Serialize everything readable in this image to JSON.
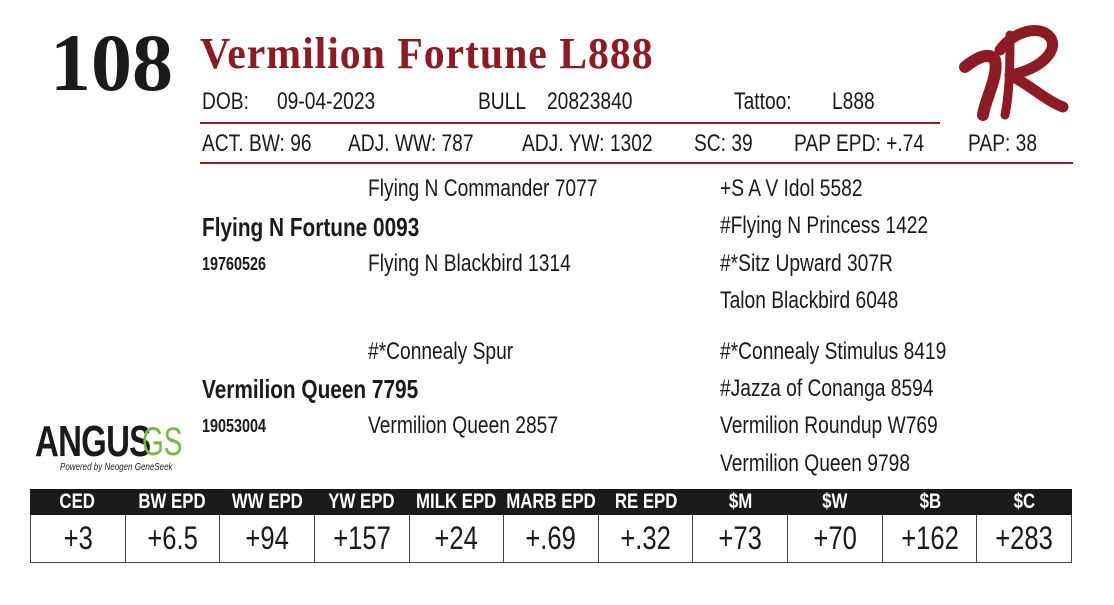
{
  "lot": "108",
  "name": "Vermilion Fortune L888",
  "info": {
    "dob_label": "DOB:",
    "dob": "09-04-2023",
    "sex": "BULL",
    "registration": "20823840",
    "tattoo_label": "Tattoo:",
    "tattoo": "L888"
  },
  "stats": [
    "ACT. BW: 96",
    "ADJ. WW: 787",
    "ADJ. YW: 1302",
    "SC: 39",
    "PAP EPD: +.74",
    "PAP: 38"
  ],
  "pedigree": {
    "sire": {
      "name": "Flying N Fortune 0093",
      "registration": "19760526",
      "sire": {
        "name": "Flying N Commander 7077",
        "sire": "+S A V Idol 5582",
        "dam": "#Flying N Princess 1422"
      },
      "dam": {
        "name": "Flying N Blackbird 1314",
        "sire": "#*Sitz Upward 307R",
        "dam": "Talon Blackbird 6048"
      }
    },
    "dam": {
      "name": "Vermilion Queen 7795",
      "registration": "19053004",
      "sire": {
        "name": "#*Connealy Spur",
        "sire": "#*Connealy Stimulus 8419",
        "dam": "#Jazza of Conanga 8594"
      },
      "dam": {
        "name": "Vermilion Queen 2857",
        "sire": "Vermilion Roundup W769",
        "dam": "Vermilion Queen 9798"
      }
    }
  },
  "logo": {
    "brand": "ANGUS",
    "suffix": "GS",
    "tagline": "Powered by Neogen GeneSeek"
  },
  "epds": {
    "headers": [
      "CED",
      "BW EPD",
      "WW EPD",
      "YW EPD",
      "MILK EPD",
      "MARB EPD",
      "RE EPD",
      "$M",
      "$W",
      "$B",
      "$C"
    ],
    "values": [
      "+3",
      "+6.5",
      "+94",
      "+157",
      "+24",
      "+.69",
      "+.32",
      "+73",
      "+70",
      "+162",
      "+283"
    ]
  }
}
